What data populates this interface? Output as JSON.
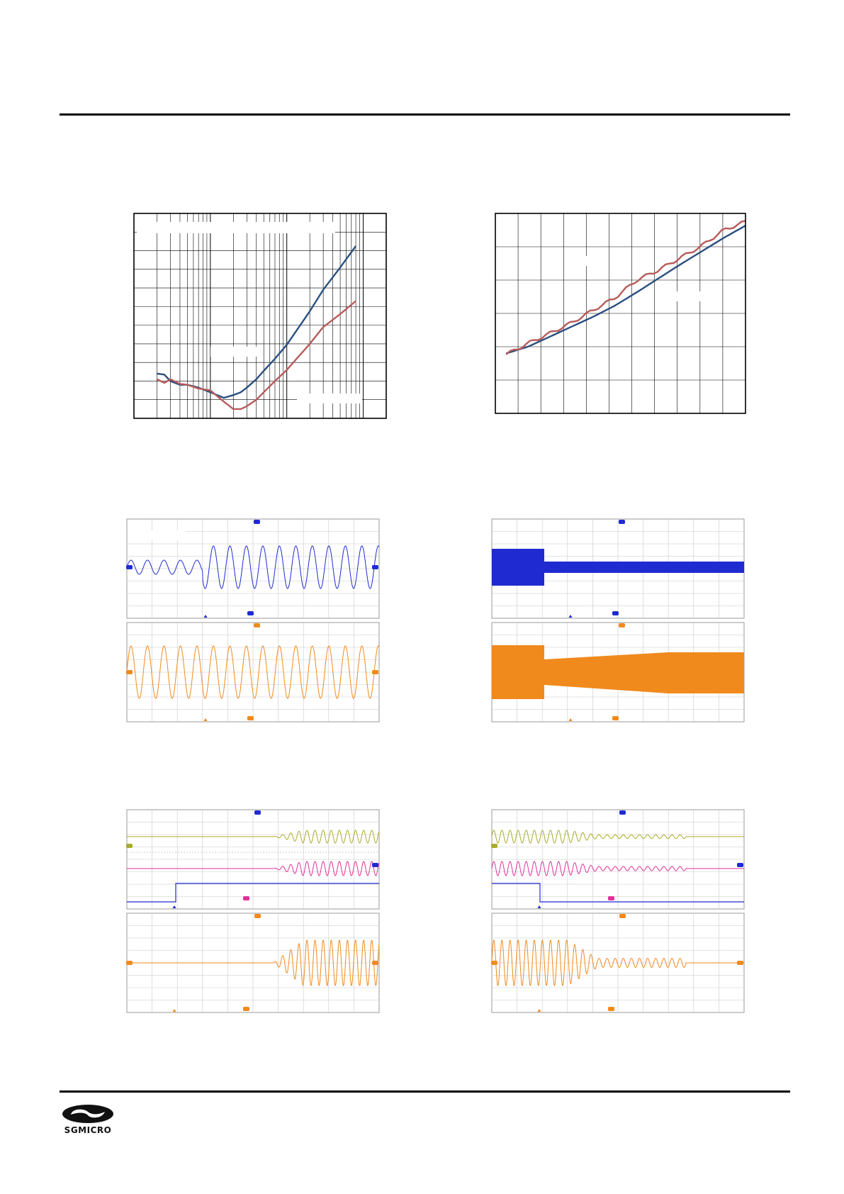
{
  "logo": {
    "text": "SGMICRO"
  },
  "colors": {
    "blue": "#2a4f80",
    "red": "#b85a5a",
    "scope_blue": "#1f2bd0",
    "scope_orange": "#f08a1c",
    "scope_olive": "#a8ad2a",
    "scope_magenta": "#e0309a",
    "grid": "#c8c8c8"
  },
  "chart_data": [
    {
      "type": "line",
      "xscale": "log",
      "x": [
        0.02,
        0.025,
        0.03,
        0.04,
        0.05,
        0.07,
        0.1,
        0.15,
        0.2,
        0.25,
        0.3,
        0.4,
        0.5,
        0.7,
        1,
        2,
        3,
        5,
        8
      ],
      "series": [
        {
          "color": "blue",
          "values": [
            0.48,
            0.47,
            0.4,
            0.36,
            0.36,
            0.33,
            0.28,
            0.22,
            0.25,
            0.28,
            0.33,
            0.42,
            0.51,
            0.64,
            0.79,
            1.15,
            1.38,
            1.62,
            1.85
          ]
        },
        {
          "color": "red",
          "values": [
            0.42,
            0.38,
            0.42,
            0.37,
            0.36,
            0.32,
            0.3,
            0.18,
            0.1,
            0.1,
            0.13,
            0.2,
            0.28,
            0.4,
            0.52,
            0.8,
            0.98,
            1.12,
            1.26
          ]
        }
      ]
    },
    {
      "type": "line",
      "x": [
        0,
        1,
        2,
        3,
        4,
        5,
        6,
        7,
        8,
        9,
        10,
        11
      ],
      "series": [
        {
          "color": "blue",
          "values": [
            0.28,
            0.4,
            0.58,
            0.76,
            0.94,
            1.14,
            1.38,
            1.63,
            1.88,
            2.12,
            2.36,
            2.58
          ]
        },
        {
          "color": "red",
          "values": [
            0.26,
            0.46,
            0.64,
            0.83,
            1.06,
            1.28,
            1.6,
            1.78,
            2.0,
            2.22,
            2.5,
            2.65
          ]
        }
      ]
    }
  ]
}
